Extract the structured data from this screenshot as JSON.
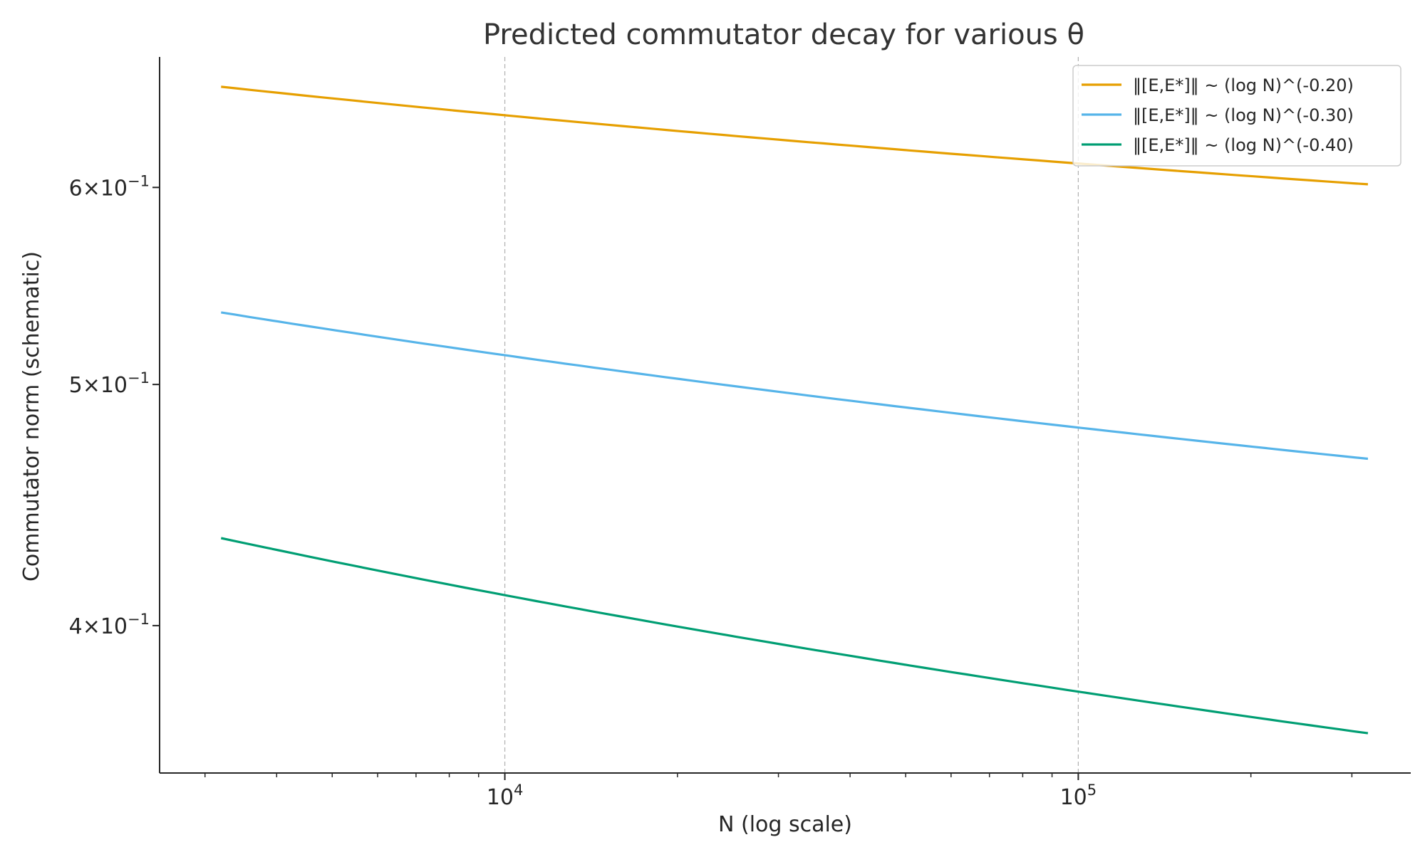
{
  "chart_data": {
    "type": "line",
    "title": "Predicted commutator decay for various θ",
    "xlabel": "N (log scale)",
    "ylabel": "Commutator norm (schematic)",
    "xscale": "log",
    "yscale": "log",
    "xlim": [
      2500,
      380000
    ],
    "ylim": [
      0.349,
      0.677
    ],
    "x_ticks": [
      {
        "value": 10000,
        "base": "10",
        "exp": "4"
      },
      {
        "value": 100000,
        "base": "10",
        "exp": "5"
      }
    ],
    "y_ticks": [
      {
        "value": 0.6,
        "mant": "6",
        "base": "10",
        "exp": "−1"
      },
      {
        "value": 0.5,
        "mant": "5",
        "base": "10",
        "exp": "−1"
      },
      {
        "value": 0.4,
        "mant": "4",
        "base": "10",
        "exp": "−1"
      }
    ],
    "grid": "vertical at major x ticks, dashed",
    "legend_position": "top-right",
    "series": [
      {
        "name": "‖[E,E*]‖ ~ (log N)^(-0.20)",
        "exponent": -0.2,
        "scale": 1.0,
        "color": "#E69F00"
      },
      {
        "name": "‖[E,E*]‖ ~ (log N)^(-0.30)",
        "exponent": -0.3,
        "scale": 1.0,
        "color": "#56B4E9"
      },
      {
        "name": "‖[E,E*]‖ ~ (log N)^(-0.40)",
        "exponent": -0.4,
        "scale": 1.0,
        "color": "#009E73"
      }
    ],
    "x_range_data": [
      3200,
      320000
    ]
  }
}
